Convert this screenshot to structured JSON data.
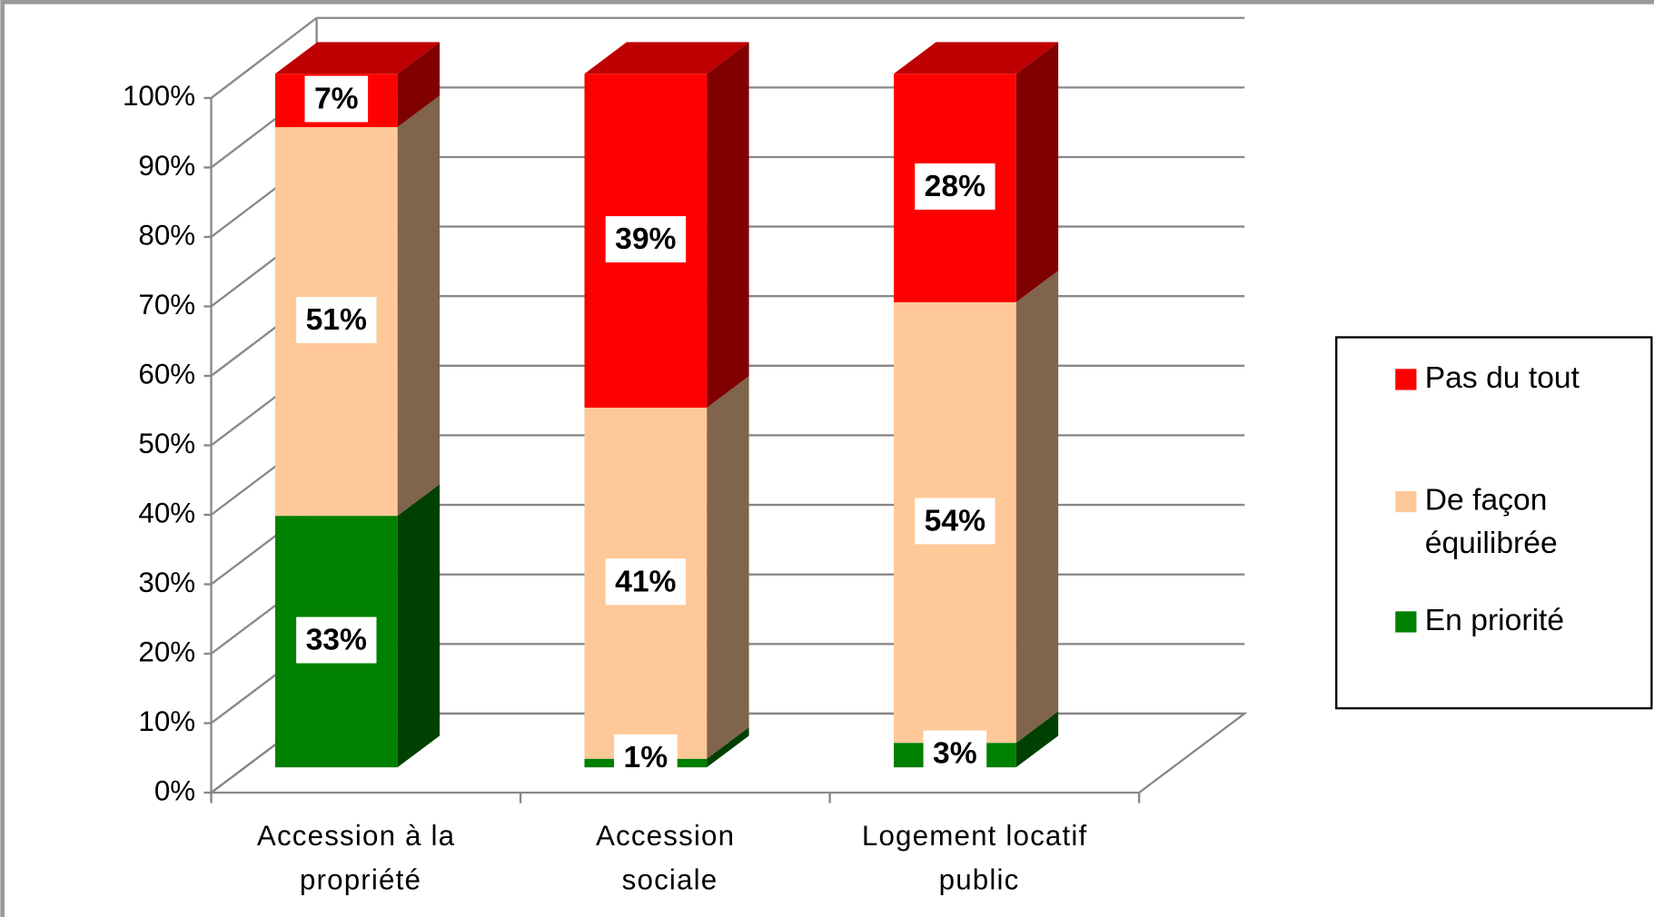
{
  "chart_data": {
    "type": "bar3d",
    "stacked": "percent",
    "categories": [
      "Accession à la propriété",
      "Accession sociale",
      "Logement locatif public"
    ],
    "series": [
      {
        "name": "En priorité",
        "color": "#008000",
        "values": [
          33,
          1,
          3
        ],
        "value_labels": [
          "33%",
          "1%",
          "3%"
        ]
      },
      {
        "name": "De façon équilibrée",
        "color": "#ffc898",
        "values": [
          51,
          41,
          54
        ],
        "value_labels": [
          "51%",
          "41%",
          "54%"
        ]
      },
      {
        "name": "Pas du tout",
        "color": "#ff0000",
        "values": [
          7,
          39,
          28
        ],
        "value_labels": [
          "7%",
          "39%",
          "28%"
        ]
      }
    ],
    "ylim": [
      0,
      100
    ],
    "yticks": [
      {
        "value": 0,
        "label": "0%"
      },
      {
        "value": 10,
        "label": "10%"
      },
      {
        "value": 20,
        "label": "20%"
      },
      {
        "value": 30,
        "label": "30%"
      },
      {
        "value": 40,
        "label": "40%"
      },
      {
        "value": 50,
        "label": "50%"
      },
      {
        "value": 60,
        "label": "60%"
      },
      {
        "value": 70,
        "label": "70%"
      },
      {
        "value": 80,
        "label": "80%"
      },
      {
        "value": 90,
        "label": "90%"
      },
      {
        "value": 100,
        "label": "100%"
      }
    ],
    "grid": true,
    "legend": "right"
  }
}
